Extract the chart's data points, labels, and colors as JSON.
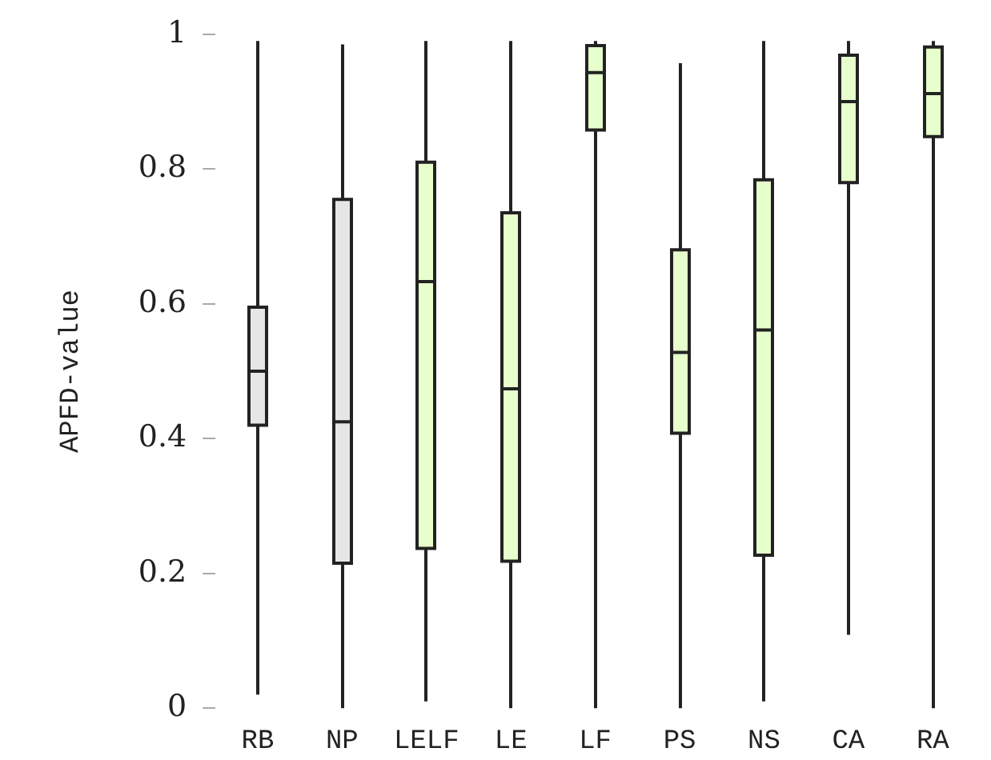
{
  "chart_data": {
    "type": "box",
    "ylabel": "APFD-value",
    "categories": [
      "RB",
      "NP",
      "LELF",
      "LE",
      "LF",
      "PS",
      "NS",
      "CA",
      "RA"
    ],
    "colors": [
      "#e6e6e6",
      "#e6e6e6",
      "#e6ffcc",
      "#e6ffcc",
      "#e6ffcc",
      "#e6ffcc",
      "#e6ffcc",
      "#e6ffcc",
      "#e6ffcc"
    ],
    "boxes": [
      {
        "low": 0.02,
        "q1": 0.42,
        "median": 0.5,
        "q3": 0.595,
        "high": 0.99
      },
      {
        "low": 0.0,
        "q1": 0.215,
        "median": 0.425,
        "q3": 0.755,
        "high": 0.985
      },
      {
        "low": 0.01,
        "q1": 0.237,
        "median": 0.633,
        "q3": 0.81,
        "high": 0.99
      },
      {
        "low": 0.0,
        "q1": 0.218,
        "median": 0.474,
        "q3": 0.735,
        "high": 0.99
      },
      {
        "low": 0.0,
        "q1": 0.858,
        "median": 0.943,
        "q3": 0.983,
        "high": 0.99
      },
      {
        "low": 0.0,
        "q1": 0.408,
        "median": 0.528,
        "q3": 0.68,
        "high": 0.957
      },
      {
        "low": 0.01,
        "q1": 0.227,
        "median": 0.561,
        "q3": 0.784,
        "high": 0.99
      },
      {
        "low": 0.109,
        "q1": 0.78,
        "median": 0.9,
        "q3": 0.969,
        "high": 0.99
      },
      {
        "low": 0.0,
        "q1": 0.848,
        "median": 0.912,
        "q3": 0.981,
        "high": 0.99
      }
    ],
    "ylim": [
      0,
      1
    ],
    "yticks": [
      0,
      0.2,
      0.4,
      0.6,
      0.8,
      1
    ],
    "grid": false,
    "legend": false
  }
}
